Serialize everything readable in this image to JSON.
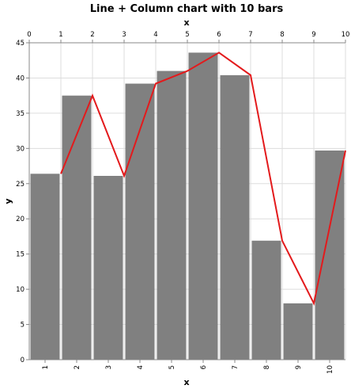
{
  "chart_data": {
    "type": "bar",
    "title": "Line + Column chart with 10 bars",
    "xlabel_top": "x",
    "xlabel_bottom": "x",
    "ylabel": "y",
    "categories": [
      "1",
      "2",
      "3",
      "4",
      "5",
      "6",
      "7",
      "8",
      "9",
      "10"
    ],
    "top_axis_ticks": [
      "0",
      "1",
      "2",
      "3",
      "4",
      "5",
      "6",
      "7",
      "8",
      "9",
      "10"
    ],
    "ylim": [
      0,
      45
    ],
    "yticks": [
      "0",
      "5",
      "10",
      "15",
      "20",
      "25",
      "30",
      "35",
      "40",
      "45"
    ],
    "grid": true,
    "colors": {
      "bars": "#808080",
      "line": "#e31a1c"
    },
    "series": [
      {
        "type": "bar",
        "x": [
          1,
          2,
          3,
          4,
          5,
          6,
          7,
          8,
          9,
          10
        ],
        "values": [
          26.4,
          37.5,
          26.1,
          39.2,
          41.0,
          43.6,
          40.4,
          16.9,
          8.0,
          29.7
        ]
      },
      {
        "type": "line",
        "x": [
          1,
          2,
          3,
          4,
          5,
          6,
          7,
          8,
          9,
          10
        ],
        "values": [
          26.4,
          37.5,
          26.1,
          39.2,
          41.0,
          43.6,
          40.4,
          16.9,
          8.0,
          29.7
        ]
      }
    ]
  }
}
